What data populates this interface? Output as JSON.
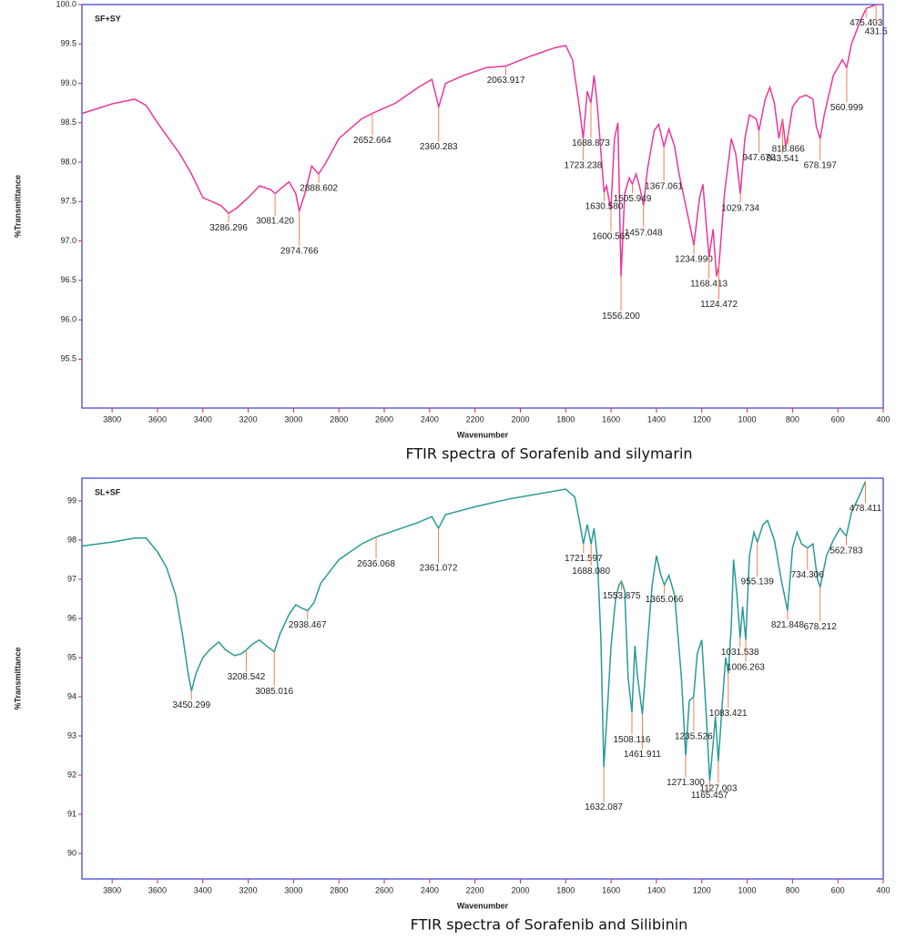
{
  "chart_data": [
    {
      "type": "line",
      "title": "SF+SY",
      "caption": "FTIR  spectra of Sorafenib and silymarin",
      "xlabel": "Wavenumber",
      "ylabel": "%Transmittance",
      "color": "#e8389a",
      "xlim": [
        3933,
        400
      ],
      "ylim": [
        94.88,
        100
      ],
      "xticks": [
        3800,
        3600,
        3400,
        3200,
        3000,
        2800,
        2600,
        2400,
        2200,
        2000,
        1800,
        1600,
        1400,
        1200,
        1000,
        800,
        600,
        400
      ],
      "yticks": [
        95.5,
        {
          "value": 96,
          "label": "96.0"
        },
        96.5,
        {
          "value": 97,
          "label": "97.0"
        },
        97.5,
        {
          "value": 98,
          "label": "98.0"
        },
        98.5,
        {
          "value": 99,
          "label": "99.0"
        },
        99.5,
        {
          "value": 100,
          "label": "100.0"
        }
      ],
      "x": [
        3930,
        3800,
        3700,
        3650,
        3600,
        3500,
        3450,
        3400,
        3360,
        3320,
        3286,
        3250,
        3200,
        3150,
        3100,
        3081,
        3050,
        3020,
        2990,
        2975,
        2950,
        2920,
        2890,
        2860,
        2800,
        2700,
        2652,
        2550,
        2450,
        2390,
        2360,
        2330,
        2250,
        2150,
        2064,
        1950,
        1850,
        1800,
        1770,
        1740,
        1723,
        1705,
        1689,
        1675,
        1660,
        1640,
        1631,
        1620,
        1601,
        1585,
        1570,
        1556,
        1540,
        1520,
        1506,
        1490,
        1475,
        1457,
        1440,
        1410,
        1390,
        1367,
        1345,
        1320,
        1300,
        1260,
        1235,
        1210,
        1195,
        1180,
        1168,
        1150,
        1135,
        1124,
        1100,
        1070,
        1050,
        1030,
        1010,
        990,
        960,
        948,
        920,
        900,
        880,
        860,
        844,
        830,
        819,
        800,
        770,
        740,
        710,
        695,
        678,
        660,
        620,
        580,
        561,
        540,
        500,
        475,
        431,
        400
      ],
      "values": [
        98.62,
        98.74,
        98.8,
        98.72,
        98.5,
        98.1,
        97.85,
        97.55,
        97.5,
        97.45,
        97.35,
        97.42,
        97.55,
        97.7,
        97.65,
        97.6,
        97.68,
        97.75,
        97.6,
        97.38,
        97.6,
        97.95,
        97.85,
        97.98,
        98.3,
        98.55,
        98.62,
        98.75,
        98.95,
        99.05,
        98.7,
        99.0,
        99.1,
        99.2,
        99.22,
        99.35,
        99.45,
        99.48,
        99.3,
        98.7,
        98.3,
        98.9,
        98.75,
        99.1,
        98.7,
        97.95,
        97.62,
        97.7,
        97.4,
        98.3,
        98.5,
        96.55,
        97.6,
        97.8,
        97.72,
        97.85,
        97.7,
        97.45,
        97.9,
        98.4,
        98.48,
        98.2,
        98.42,
        98.2,
        97.85,
        97.3,
        96.95,
        97.55,
        97.72,
        97.2,
        96.8,
        97.15,
        96.55,
        96.7,
        97.6,
        98.3,
        98.1,
        97.6,
        98.3,
        98.6,
        98.55,
        98.4,
        98.8,
        98.95,
        98.75,
        98.3,
        98.55,
        98.2,
        98.35,
        98.7,
        98.82,
        98.85,
        98.8,
        98.45,
        98.3,
        98.6,
        99.1,
        99.3,
        99.2,
        99.5,
        99.8,
        99.95,
        100.0,
        100.0
      ],
      "peaks": {
        "x": [
          3286.296,
          3081.42,
          2974.766,
          2888.602,
          2652.664,
          2360.283,
          2063.917,
          1723.238,
          1688.873,
          1630.58,
          1600.565,
          1556.2,
          1505.949,
          1457.048,
          1367.061,
          1234.99,
          1168.413,
          1124.472,
          1029.734,
          947.67,
          843.541,
          818.866,
          678.197,
          560.999,
          475.403,
          431.5
        ],
        "values": [
          97.35,
          97.6,
          97.38,
          97.85,
          98.62,
          98.7,
          99.22,
          98.3,
          98.75,
          97.62,
          97.4,
          96.55,
          97.72,
          97.45,
          98.2,
          96.95,
          96.8,
          96.7,
          97.6,
          98.4,
          98.55,
          98.35,
          98.3,
          99.2,
          99.95,
          100.0
        ],
        "labels": [
          "3286.296",
          "3081.420",
          "2974.766",
          "2888.602",
          "2652.664",
          "2360.283",
          "2063.917",
          "1723.238",
          "1688.873",
          "1630.580",
          "1600.565",
          "1556.200",
          "1505.949",
          "1457.048",
          "1367.061",
          "1234.990",
          "1168.413",
          "1124.472",
          "1029.734",
          "947.670",
          "843.541",
          "818.866",
          "678.197",
          "560.999",
          "475.403",
          "431.5"
        ]
      }
    },
    {
      "type": "line",
      "title": "SL+SF",
      "caption": "FTIR  spectra of Sorafenib and Silibinin",
      "xlabel": "Wavenumber",
      "ylabel": "%Transmittance",
      "color": "#2a9a98",
      "xlim": [
        3933,
        400
      ],
      "ylim": [
        89.35,
        99.58
      ],
      "xticks": [
        3800,
        3600,
        3400,
        3200,
        3000,
        2800,
        2600,
        2400,
        2200,
        2000,
        1800,
        1600,
        1400,
        1200,
        1000,
        800,
        600,
        400
      ],
      "yticks": [
        90,
        91,
        92,
        93,
        94,
        95,
        96,
        97,
        98,
        99
      ],
      "x": [
        3930,
        3800,
        3700,
        3650,
        3600,
        3560,
        3520,
        3490,
        3465,
        3450,
        3430,
        3400,
        3370,
        3330,
        3300,
        3260,
        3230,
        3208,
        3180,
        3150,
        3120,
        3085,
        3060,
        3020,
        2990,
        2960,
        2938,
        2910,
        2880,
        2800,
        2700,
        2636,
        2550,
        2450,
        2390,
        2361,
        2330,
        2200,
        2050,
        1950,
        1850,
        1800,
        1760,
        1740,
        1722,
        1705,
        1688,
        1675,
        1660,
        1645,
        1632,
        1615,
        1600,
        1580,
        1565,
        1554,
        1540,
        1525,
        1508,
        1495,
        1485,
        1462,
        1440,
        1420,
        1400,
        1380,
        1365,
        1345,
        1320,
        1290,
        1271,
        1255,
        1236,
        1220,
        1200,
        1180,
        1165,
        1150,
        1140,
        1127,
        1110,
        1095,
        1083,
        1070,
        1060,
        1045,
        1031,
        1020,
        1006,
        990,
        970,
        955,
        930,
        910,
        880,
        850,
        822,
        800,
        780,
        760,
        734,
        710,
        690,
        678,
        650,
        620,
        590,
        563,
        540,
        500,
        478
      ],
      "values": [
        97.85,
        97.95,
        98.05,
        98.05,
        97.7,
        97.3,
        96.6,
        95.6,
        94.6,
        94.15,
        94.6,
        95.0,
        95.2,
        95.4,
        95.2,
        95.05,
        95.1,
        95.2,
        95.35,
        95.45,
        95.3,
        95.15,
        95.6,
        96.1,
        96.35,
        96.25,
        96.2,
        96.4,
        96.9,
        97.5,
        97.9,
        98.08,
        98.25,
        98.45,
        98.6,
        98.3,
        98.65,
        98.85,
        99.05,
        99.15,
        99.25,
        99.3,
        99.1,
        98.5,
        97.9,
        98.4,
        97.9,
        98.3,
        97.5,
        95.5,
        92.2,
        93.8,
        95.3,
        96.5,
        96.85,
        96.95,
        96.7,
        94.5,
        93.6,
        95.3,
        94.6,
        93.55,
        95.3,
        96.8,
        97.6,
        97.1,
        96.85,
        97.1,
        96.6,
        94.5,
        92.5,
        93.9,
        94.0,
        95.1,
        95.45,
        93.5,
        91.85,
        92.8,
        93.5,
        92.35,
        93.8,
        95.0,
        94.6,
        95.8,
        97.5,
        96.6,
        95.5,
        96.3,
        95.45,
        97.6,
        98.2,
        97.95,
        98.4,
        98.5,
        98.0,
        97.0,
        96.2,
        97.8,
        98.2,
        97.9,
        97.8,
        97.9,
        97.0,
        96.8,
        97.6,
        98.0,
        98.3,
        98.1,
        98.7,
        99.2,
        99.5
      ],
      "peaks": {
        "x": [
          3450.299,
          3208.542,
          3085.016,
          2938.467,
          2636.068,
          2361.072,
          1721.597,
          1688.08,
          1632.087,
          1553.875,
          1508.116,
          1461.911,
          1365.066,
          1271.3,
          1235.526,
          1165.457,
          1127.003,
          1083.421,
          1031.538,
          1006.263,
          955.139,
          821.848,
          734.306,
          678.212,
          562.783,
          478.411
        ],
        "values": [
          94.15,
          95.2,
          95.15,
          96.2,
          98.08,
          98.3,
          97.9,
          97.9,
          92.2,
          96.95,
          93.6,
          93.55,
          96.85,
          92.5,
          94.0,
          91.85,
          92.35,
          94.6,
          95.5,
          95.45,
          97.95,
          96.2,
          97.8,
          96.8,
          98.1,
          99.5
        ],
        "labels": [
          "3450.299",
          "3208.542",
          "3085.016",
          "2938.467",
          "2636.068",
          "2361.072",
          "1721.597",
          "1688.080",
          "1632.087",
          "1553.875",
          "1508.116",
          "1461.911",
          "1365.066",
          "1271.300",
          "1235.526",
          "1165.457",
          "1127.003",
          "1083.421",
          "1031.538",
          "1006.263",
          "955.139",
          "821.848",
          "734.306",
          "678.212",
          "562.783",
          "478.411"
        ]
      }
    }
  ]
}
